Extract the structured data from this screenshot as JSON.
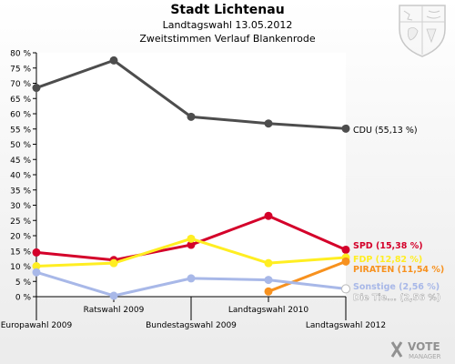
{
  "header": {
    "title": "Stadt Lichtenau",
    "subtitle1": "Landtagswahl 13.05.2012",
    "subtitle2": "Zweitstimmen Verlauf Blankenrode"
  },
  "logo": {
    "line1": "VOTE",
    "line2": "MANAGER"
  },
  "chart_data": {
    "type": "line",
    "title": "Stadt Lichtenau",
    "categories": [
      "Europawahl 2009",
      "Ratswahl 2009",
      "Bundestagswahl 2009",
      "Landtagswahl 2010",
      "Landtagswahl 2012"
    ],
    "ylim": [
      0,
      80
    ],
    "yticks": [
      0,
      5,
      10,
      15,
      20,
      25,
      30,
      35,
      40,
      45,
      50,
      55,
      60,
      65,
      70,
      75,
      80
    ],
    "ytick_suffix": " %",
    "grid": false,
    "series": [
      {
        "name": "CDU",
        "label": "CDU (55,13 %)",
        "color": "#4d4d4d",
        "values": [
          68.5,
          77.5,
          59.0,
          56.8,
          55.13
        ]
      },
      {
        "name": "SPD",
        "label": "SPD (15,38 %)",
        "color": "#d4002a",
        "values": [
          14.5,
          12.0,
          17.0,
          26.5,
          15.38
        ]
      },
      {
        "name": "FDP",
        "label": "FDP (12,82 %)",
        "color": "#ffee22",
        "values": [
          10.0,
          11.0,
          19.0,
          11.0,
          12.82
        ]
      },
      {
        "name": "PIRATEN",
        "label": "PIRATEN (11,54 %)",
        "color": "#f7911e",
        "values": [
          null,
          null,
          null,
          1.7,
          11.54
        ]
      },
      {
        "name": "Sonstige",
        "label": "Sonstige (2,56 %)",
        "color": "#a8b8e8",
        "values": [
          8.0,
          0.3,
          6.0,
          5.5,
          2.56
        ]
      },
      {
        "name": "Die Tierschutzpartei",
        "label": "Die Tie... (2,56 %)",
        "color": "#ffffff",
        "values": [
          null,
          null,
          null,
          null,
          2.56
        ]
      }
    ]
  }
}
